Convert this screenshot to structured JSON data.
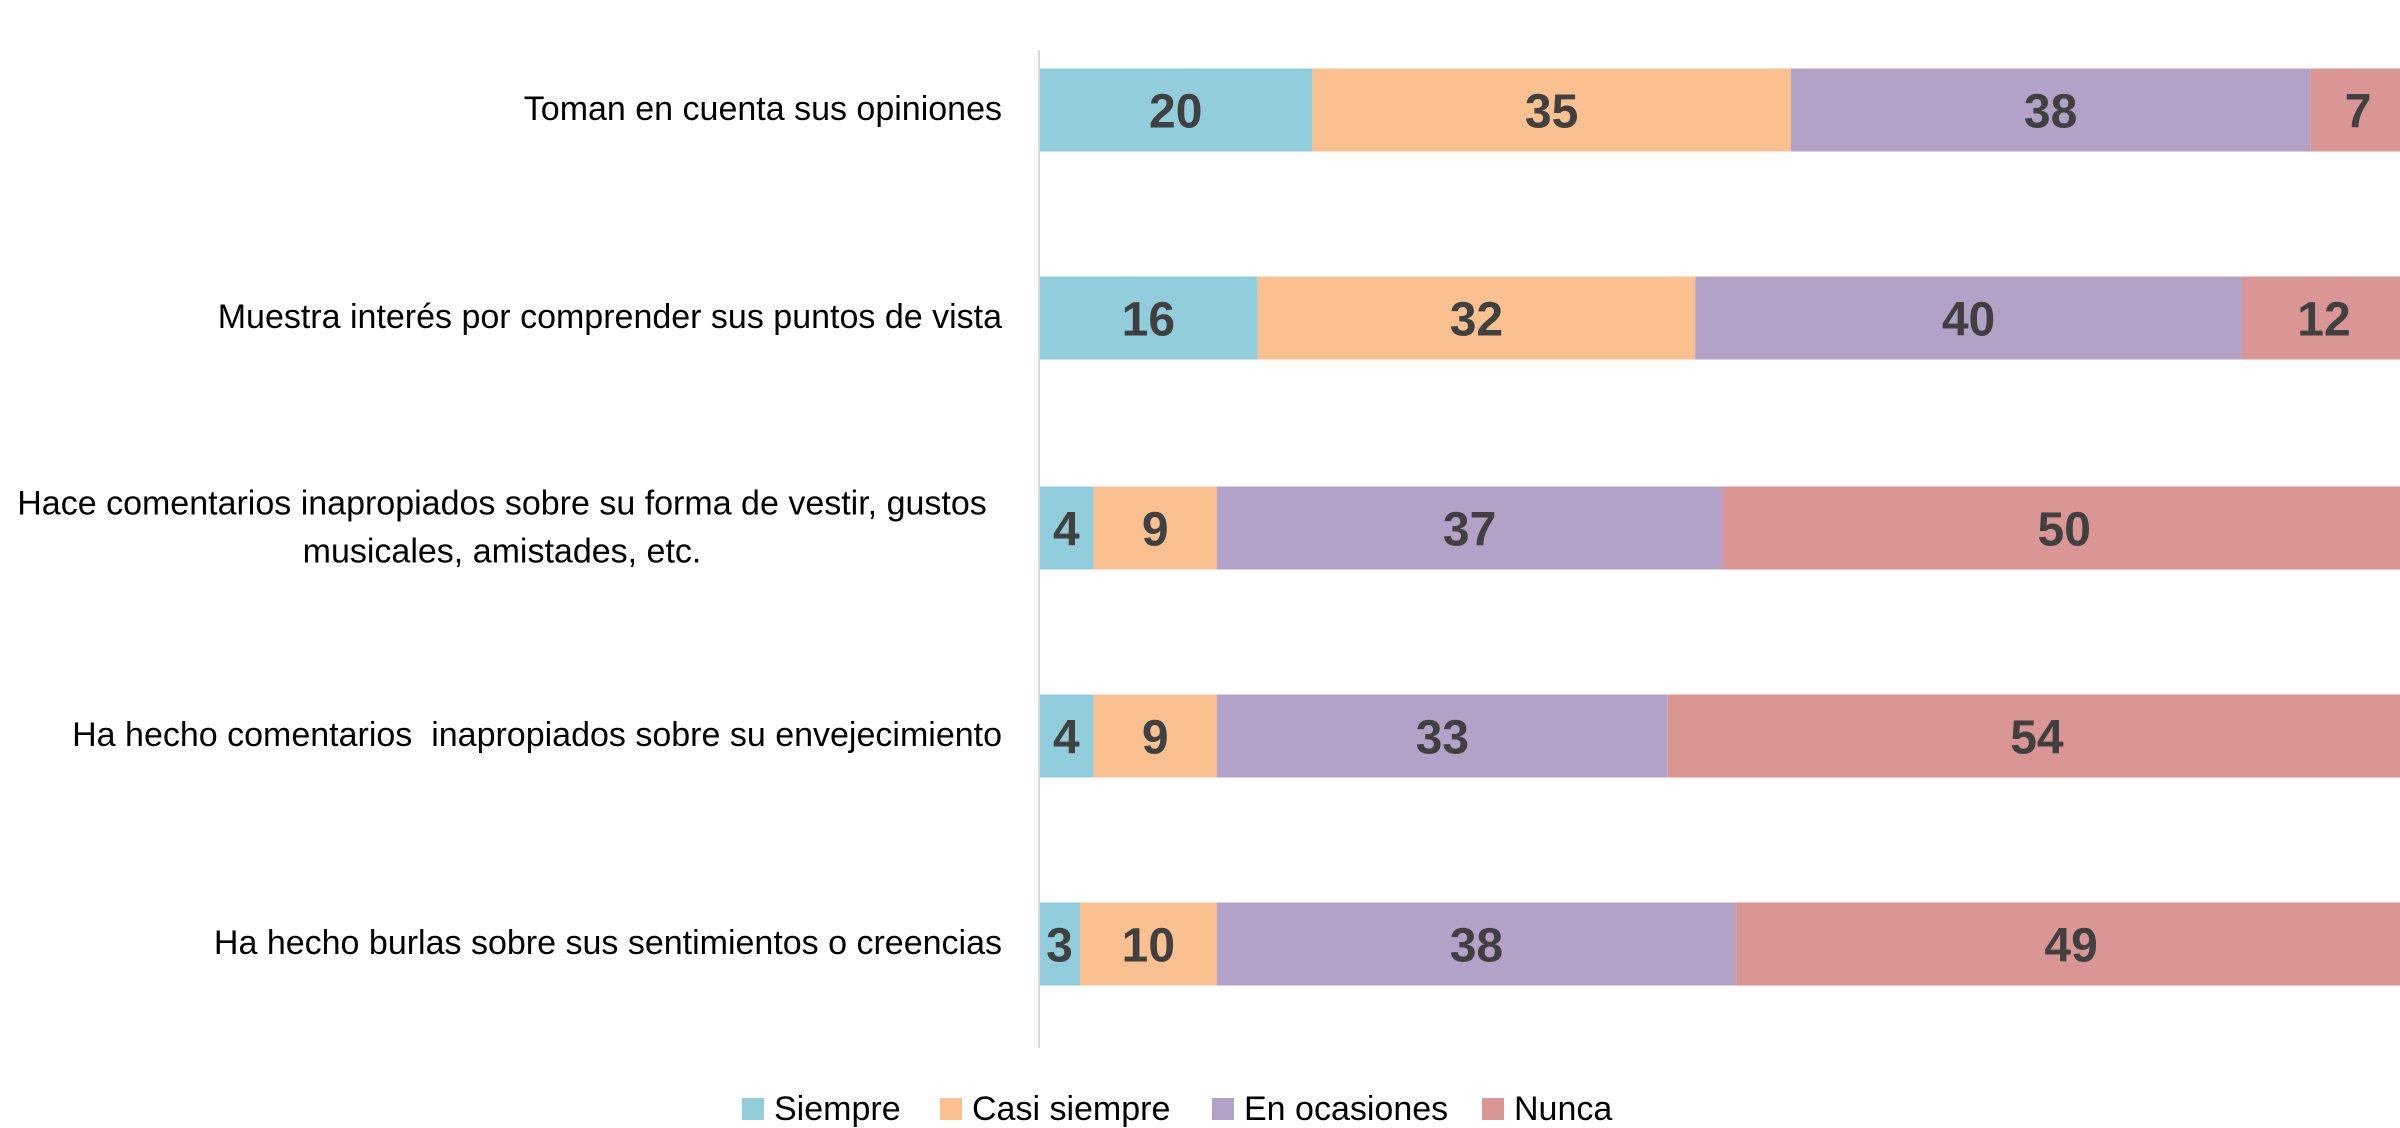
{
  "chart_data": {
    "type": "stacked-bar-horizontal",
    "categories": [
      "Toman en cuenta sus opiniones",
      "Muestra interés por comprender sus puntos de vista",
      "Hace comentarios inapropiados sobre su forma de vestir, gustos musicales, amistades, etc.",
      "Ha hecho comentarios  inapropiados sobre su envejecimiento",
      "Ha hecho burlas sobre sus sentimientos o creencias"
    ],
    "series": [
      {
        "name": "Siempre",
        "color": "#92cddc",
        "values": [
          20,
          16,
          4,
          4,
          3
        ]
      },
      {
        "name": "Casi siempre",
        "color": "#fac090",
        "values": [
          35,
          32,
          9,
          9,
          10
        ]
      },
      {
        "name": "En ocasiones",
        "color": "#b3a2c7",
        "values": [
          38,
          40,
          37,
          33,
          38
        ]
      },
      {
        "name": "Nunca",
        "color": "#d99694",
        "values": [
          7,
          12,
          50,
          54,
          49
        ]
      }
    ],
    "xlim": [
      0,
      100
    ],
    "legend": "bottom"
  }
}
